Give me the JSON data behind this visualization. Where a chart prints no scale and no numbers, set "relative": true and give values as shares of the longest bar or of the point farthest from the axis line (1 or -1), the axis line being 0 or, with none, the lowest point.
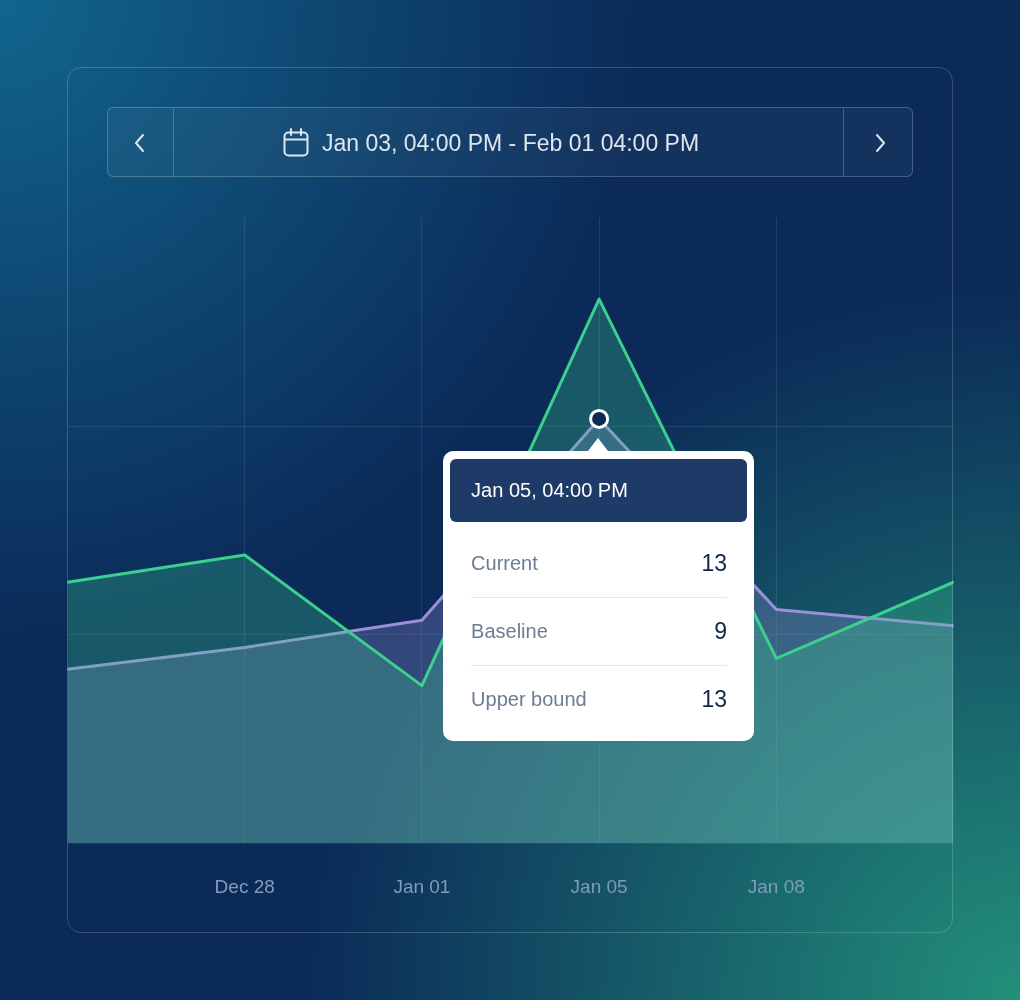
{
  "chart_data": {
    "type": "area",
    "title": "Jan 03, 04:00 PM - Feb 01 04:00 PM",
    "categories": [
      null,
      "Dec 28",
      "Jan 01",
      "Jan 05",
      "Jan 08",
      null
    ],
    "relative": true,
    "series": [
      {
        "color": "#9b8fd9",
        "values": [
          0.32,
          0.36,
          0.41,
          0.78,
          0.43,
          0.4
        ]
      },
      {
        "color": "#3dcf8e",
        "values": [
          0.48,
          0.53,
          0.29,
          1.0,
          0.34,
          0.48
        ]
      },
      {
        "type": "scatter",
        "x": [
          "Jan 05"
        ],
        "values": [
          0.78
        ],
        "color": "#ffffff",
        "marker": "circle"
      }
    ],
    "grid": true,
    "line_style": "solid",
    "annotations": [
      "Jan 05, 04:00 PM",
      "Current",
      "13",
      "Baseline",
      "9",
      "Upper bound",
      "13"
    ]
  }
}
